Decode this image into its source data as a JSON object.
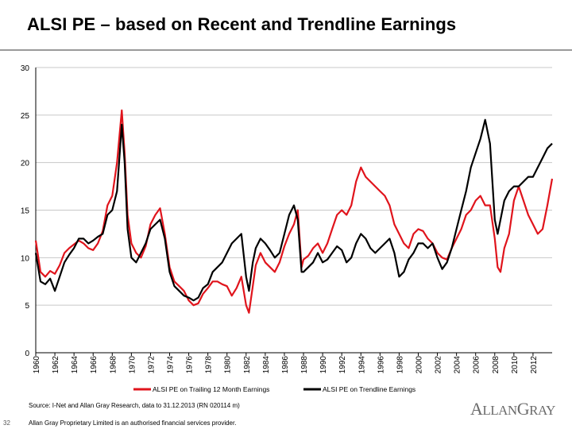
{
  "title": "ALSI PE – based on Recent and Trendline Earnings",
  "source_note": "Source: I-Net and Allan Gray Research, data to 31.12.2013 (RN 020114 m)",
  "page_number": "32",
  "disclaimer": "Allan Gray Proprietary Limited is an authorised financial services provider.",
  "logo_text": "AllanGray",
  "colors": {
    "trailing": "#e0141c",
    "trendline": "#000000",
    "grid": "#c8c8c8"
  },
  "chart_data": {
    "type": "line",
    "title": "ALSI PE – based on Recent and Trendline Earnings",
    "xlabel": "",
    "ylabel": "",
    "xlim": [
      1960,
      2014
    ],
    "ylim": [
      0,
      30
    ],
    "yticks": [
      0,
      5,
      10,
      15,
      20,
      25,
      30
    ],
    "xticks": [
      "1960",
      "1962",
      "1964",
      "1966",
      "1968",
      "1970",
      "1972",
      "1974",
      "1976",
      "1978",
      "1980",
      "1982",
      "1984",
      "1986",
      "1988",
      "1990",
      "1992",
      "1994",
      "1996",
      "1998",
      "2000",
      "2002",
      "2004",
      "2006",
      "2008",
      "2010",
      "2012"
    ],
    "grid": "horizontal",
    "legend_position": "bottom",
    "series": [
      {
        "name": "ALSI PE on Trailing 12 Month Earnings",
        "color": "#e0141c",
        "x": [
          1960,
          1960.5,
          1961,
          1961.5,
          1962,
          1962.5,
          1963,
          1963.5,
          1964,
          1964.5,
          1965,
          1965.5,
          1966,
          1966.5,
          1967,
          1967.5,
          1968,
          1968.5,
          1969,
          1969.3,
          1969.6,
          1970,
          1970.5,
          1971,
          1971.5,
          1972,
          1972.5,
          1973,
          1973.5,
          1974,
          1974.5,
          1975,
          1975.5,
          1976,
          1976.5,
          1977,
          1977.5,
          1978,
          1978.5,
          1979,
          1979.5,
          1980,
          1980.5,
          1981,
          1981.5,
          1982,
          1982.3,
          1982.7,
          1983,
          1983.5,
          1984,
          1984.5,
          1985,
          1985.5,
          1986,
          1986.5,
          1987,
          1987.4,
          1987.8,
          1988,
          1988.5,
          1989,
          1989.5,
          1990,
          1990.5,
          1991,
          1991.5,
          1992,
          1992.5,
          1993,
          1993.5,
          1994,
          1994.5,
          1995,
          1995.5,
          1996,
          1996.5,
          1997,
          1997.5,
          1998,
          1998.5,
          1999,
          1999.5,
          2000,
          2000.5,
          2001,
          2001.5,
          2002,
          2002.5,
          2003,
          2003.5,
          2004,
          2004.5,
          2005,
          2005.5,
          2006,
          2006.5,
          2007,
          2007.5,
          2008,
          2008.3,
          2008.6,
          2009,
          2009.5,
          2010,
          2010.5,
          2011,
          2011.5,
          2012,
          2012.5,
          2013,
          2013.5,
          2014
        ],
        "values": [
          11.8,
          8.5,
          8.0,
          8.6,
          8.3,
          9.2,
          10.5,
          11.0,
          11.4,
          11.8,
          11.5,
          11.0,
          10.8,
          11.5,
          12.8,
          15.5,
          16.5,
          20.0,
          25.5,
          21.0,
          14.5,
          11.5,
          10.5,
          10.0,
          11.2,
          13.5,
          14.5,
          15.2,
          12.5,
          9.0,
          7.5,
          7.0,
          6.5,
          5.5,
          5.0,
          5.2,
          6.2,
          6.8,
          7.5,
          7.5,
          7.2,
          7.0,
          6.0,
          6.8,
          8.0,
          5.0,
          4.2,
          7.0,
          9.2,
          10.5,
          9.5,
          9.0,
          8.5,
          9.5,
          11.2,
          12.5,
          13.5,
          15.0,
          9.0,
          9.8,
          10.2,
          11.0,
          11.5,
          10.5,
          11.5,
          13.0,
          14.5,
          15.0,
          14.5,
          15.5,
          18.0,
          19.5,
          18.5,
          18.0,
          17.5,
          17.0,
          16.5,
          15.5,
          13.5,
          12.5,
          11.5,
          11.0,
          12.5,
          13.0,
          12.8,
          12.0,
          11.5,
          10.5,
          10.0,
          9.8,
          11.0,
          12.0,
          13.0,
          14.5,
          15.0,
          16.0,
          16.5,
          15.5,
          15.5,
          12.0,
          9.0,
          8.5,
          11.0,
          12.5,
          16.0,
          17.5,
          16.0,
          14.5,
          13.5,
          12.5,
          13.0,
          15.5,
          18.3
        ]
      },
      {
        "name": "ALSI PE on Trendline Earnings",
        "color": "#000000",
        "x": [
          1960,
          1960.5,
          1961,
          1961.5,
          1962,
          1962.5,
          1963,
          1963.5,
          1964,
          1964.5,
          1965,
          1965.5,
          1966,
          1966.5,
          1967,
          1967.5,
          1968,
          1968.5,
          1969,
          1969.3,
          1969.6,
          1970,
          1970.5,
          1971,
          1971.5,
          1972,
          1972.5,
          1973,
          1973.5,
          1974,
          1974.5,
          1975,
          1975.5,
          1976,
          1976.5,
          1977,
          1977.5,
          1978,
          1978.5,
          1979,
          1979.5,
          1980,
          1980.5,
          1981,
          1981.5,
          1982,
          1982.3,
          1982.7,
          1983,
          1983.5,
          1984,
          1984.5,
          1985,
          1985.5,
          1986,
          1986.5,
          1987,
          1987.4,
          1987.8,
          1988,
          1988.5,
          1989,
          1989.5,
          1990,
          1990.5,
          1991,
          1991.5,
          1992,
          1992.5,
          1993,
          1993.5,
          1994,
          1994.5,
          1995,
          1995.5,
          1996,
          1996.5,
          1997,
          1997.5,
          1998,
          1998.5,
          1999,
          1999.5,
          2000,
          2000.5,
          2001,
          2001.5,
          2002,
          2002.5,
          2003,
          2003.5,
          2004,
          2004.5,
          2005,
          2005.5,
          2006,
          2006.5,
          2007,
          2007.5,
          2008,
          2008.3,
          2008.6,
          2009,
          2009.5,
          2010,
          2010.5,
          2011,
          2011.5,
          2012,
          2012.5,
          2013,
          2013.5,
          2014
        ],
        "values": [
          10.5,
          7.5,
          7.2,
          7.8,
          6.5,
          8.0,
          9.5,
          10.3,
          11.0,
          12.0,
          12.0,
          11.5,
          11.8,
          12.2,
          12.5,
          14.5,
          15.0,
          17.0,
          24.0,
          20.0,
          13.0,
          10.0,
          9.5,
          10.5,
          11.5,
          13.0,
          13.5,
          14.0,
          12.0,
          8.5,
          7.0,
          6.5,
          6.0,
          5.8,
          5.5,
          5.8,
          6.8,
          7.2,
          8.5,
          9.0,
          9.5,
          10.5,
          11.5,
          12.0,
          12.5,
          8.0,
          6.5,
          9.5,
          11.0,
          12.0,
          11.5,
          10.8,
          10.0,
          10.5,
          12.5,
          14.5,
          15.5,
          14.0,
          8.5,
          8.5,
          9.0,
          9.5,
          10.5,
          9.5,
          9.8,
          10.5,
          11.2,
          10.8,
          9.5,
          10.0,
          11.5,
          12.5,
          12.0,
          11.0,
          10.5,
          11.0,
          11.5,
          12.0,
          10.5,
          8.0,
          8.5,
          9.8,
          10.5,
          11.5,
          11.5,
          11.0,
          11.5,
          10.0,
          8.8,
          9.5,
          11.0,
          13.0,
          15.0,
          17.0,
          19.5,
          21.0,
          22.5,
          24.5,
          22.0,
          14.0,
          12.5,
          14.0,
          16.0,
          17.0,
          17.5,
          17.5,
          18.0,
          18.5,
          18.5,
          19.5,
          20.5,
          21.5,
          22.0
        ]
      }
    ]
  }
}
